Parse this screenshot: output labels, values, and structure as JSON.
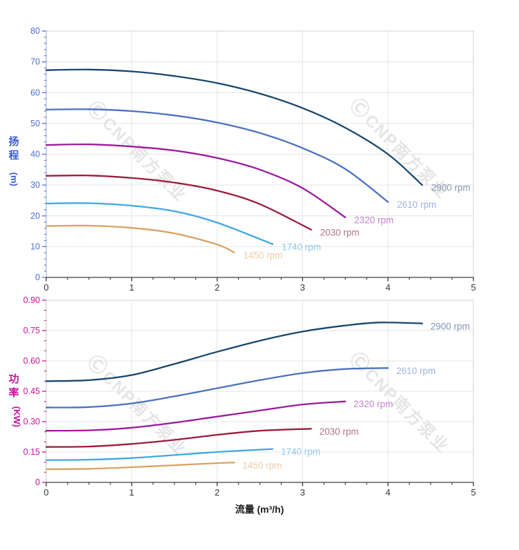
{
  "page": {
    "background": "#ffffff"
  },
  "watermark": {
    "symbol": "Ⓒ",
    "text": "CNP南方泵业"
  },
  "chart_data": [
    {
      "type": "line",
      "title": "",
      "role": "pump-head-curve",
      "ylabel": "扬程 (m)",
      "ylabel_cn": "扬程",
      "ylabel_unit": "(m)",
      "xlabel": "流量 (m³/h)",
      "xlim": [
        0,
        5
      ],
      "ylim": [
        0,
        80
      ],
      "x_major": 1,
      "x_minor": 0.25,
      "y_major": 10,
      "y_minor": 2,
      "x_tick_labels": [
        "0",
        "1",
        "2",
        "3",
        "4",
        "5"
      ],
      "y_tick_labels": [
        "0",
        "10",
        "20",
        "30",
        "40",
        "50",
        "60",
        "70",
        "80"
      ],
      "grid": true,
      "legend_position": "curve-ends",
      "colors": {
        "y_axis_line": "#8fa2dd",
        "y_tick": "#5d7ad9",
        "y_text": "#4a6fd8",
        "x_axis": "#3f3f3f",
        "x_text": "#333333",
        "grid": "#e4e4e4",
        "border": "#d2d2d2"
      },
      "series": [
        {
          "name": "2900 rpm",
          "rpm": 2900,
          "color": "#16466e",
          "label_color": "#7e95b5",
          "points": [
            [
              0,
              67.3
            ],
            [
              0.5,
              67.5
            ],
            [
              1,
              66.9
            ],
            [
              1.5,
              65.4
            ],
            [
              2,
              63.1
            ],
            [
              2.5,
              59.7
            ],
            [
              3,
              55
            ],
            [
              3.5,
              48.6
            ],
            [
              4,
              40
            ],
            [
              4.4,
              30
            ]
          ]
        },
        {
          "name": "2610 rpm",
          "rpm": 2610,
          "color": "#4a70c0",
          "label_color": "#9fb2de",
          "points": [
            [
              0,
              54.5
            ],
            [
              0.5,
              54.6
            ],
            [
              1,
              54
            ],
            [
              1.5,
              52.6
            ],
            [
              2,
              50.3
            ],
            [
              2.5,
              46.9
            ],
            [
              3,
              42
            ],
            [
              3.5,
              35.2
            ],
            [
              4,
              24.5
            ]
          ]
        },
        {
          "name": "2320 rpm",
          "rpm": 2320,
          "color": "#9c189c",
          "label_color": "#c382ca",
          "points": [
            [
              0,
              43
            ],
            [
              0.5,
              43.2
            ],
            [
              1,
              42.5
            ],
            [
              1.5,
              41.2
            ],
            [
              2,
              38.8
            ],
            [
              2.5,
              35
            ],
            [
              3,
              29
            ],
            [
              3.5,
              19.5
            ]
          ]
        },
        {
          "name": "2030 rpm",
          "rpm": 2030,
          "color": "#9b1b3c",
          "label_color": "#b5708a",
          "points": [
            [
              0,
              33
            ],
            [
              0.5,
              33.1
            ],
            [
              1,
              32.3
            ],
            [
              1.5,
              30.8
            ],
            [
              2,
              28.2
            ],
            [
              2.5,
              23.8
            ],
            [
              3.1,
              15.5
            ]
          ]
        },
        {
          "name": "1740 rpm",
          "rpm": 1740,
          "color": "#3fa8e0",
          "label_color": "#8ec8ec",
          "points": [
            [
              0,
              24
            ],
            [
              0.5,
              24.1
            ],
            [
              1,
              23.3
            ],
            [
              1.5,
              21.5
            ],
            [
              2,
              17.8
            ],
            [
              2.65,
              10.8
            ]
          ]
        },
        {
          "name": "1450 rpm",
          "rpm": 1450,
          "color": "#d8a263",
          "label_color": "#eccda6",
          "points": [
            [
              0,
              16.7
            ],
            [
              0.5,
              16.8
            ],
            [
              1,
              16.1
            ],
            [
              1.5,
              14.3
            ],
            [
              2,
              10.7
            ],
            [
              2.2,
              8.1
            ]
          ]
        }
      ]
    },
    {
      "type": "line",
      "title": "",
      "role": "pump-power-curve",
      "ylabel": "功率 (KW)",
      "ylabel_cn": "功率",
      "ylabel_unit": "(KW)",
      "xlabel": "流量 (m³/h)",
      "xlim": [
        0,
        5
      ],
      "ylim": [
        0,
        0.9
      ],
      "x_major": 1,
      "x_minor": 0.25,
      "y_major": 0.15,
      "y_minor": 0.05,
      "x_tick_labels": [
        "0",
        "1",
        "2",
        "3",
        "4",
        "5"
      ],
      "y_tick_labels": [
        "0",
        "0.15",
        "0.30",
        "0.45",
        "0.60",
        "0.75",
        "0.90"
      ],
      "grid": true,
      "legend_position": "curve-ends",
      "colors": {
        "y_axis_line": "#c6c6c6",
        "y_tick": "#d02a9c",
        "y_text": "#cc1199",
        "x_axis": "#3f3f3f",
        "x_text": "#333333",
        "grid": "#e4e4e4",
        "border": "#d2d2d2"
      },
      "series": [
        {
          "name": "2900 rpm",
          "rpm": 2900,
          "color": "#16466e",
          "label_color": "#7e95b5",
          "points": [
            [
              0,
              0.5
            ],
            [
              0.5,
              0.505
            ],
            [
              1,
              0.53
            ],
            [
              1.5,
              0.585
            ],
            [
              2,
              0.645
            ],
            [
              2.5,
              0.7
            ],
            [
              3,
              0.745
            ],
            [
              3.5,
              0.775
            ],
            [
              3.9,
              0.79
            ],
            [
              4.4,
              0.785
            ]
          ]
        },
        {
          "name": "2610 rpm",
          "rpm": 2610,
          "color": "#4a70c0",
          "label_color": "#9fb2de",
          "points": [
            [
              0,
              0.37
            ],
            [
              0.5,
              0.372
            ],
            [
              1,
              0.39
            ],
            [
              1.5,
              0.425
            ],
            [
              2,
              0.465
            ],
            [
              2.5,
              0.505
            ],
            [
              3,
              0.54
            ],
            [
              3.5,
              0.56
            ],
            [
              4,
              0.565
            ]
          ]
        },
        {
          "name": "2320 rpm",
          "rpm": 2320,
          "color": "#9c189c",
          "label_color": "#c382ca",
          "points": [
            [
              0,
              0.255
            ],
            [
              0.5,
              0.257
            ],
            [
              1,
              0.27
            ],
            [
              1.5,
              0.295
            ],
            [
              2,
              0.325
            ],
            [
              2.5,
              0.355
            ],
            [
              3,
              0.385
            ],
            [
              3.5,
              0.4
            ]
          ]
        },
        {
          "name": "2030 rpm",
          "rpm": 2030,
          "color": "#9b1b3c",
          "label_color": "#b5708a",
          "points": [
            [
              0,
              0.175
            ],
            [
              0.5,
              0.177
            ],
            [
              1,
              0.19
            ],
            [
              1.5,
              0.21
            ],
            [
              2,
              0.235
            ],
            [
              2.5,
              0.255
            ],
            [
              3.1,
              0.265
            ]
          ]
        },
        {
          "name": "1740 rpm",
          "rpm": 1740,
          "color": "#3fa8e0",
          "label_color": "#8ec8ec",
          "points": [
            [
              0,
              0.11
            ],
            [
              0.5,
              0.112
            ],
            [
              1,
              0.12
            ],
            [
              1.5,
              0.135
            ],
            [
              2,
              0.15
            ],
            [
              2.65,
              0.165
            ]
          ]
        },
        {
          "name": "1450 rpm",
          "rpm": 1450,
          "color": "#d8a263",
          "label_color": "#eccda6",
          "points": [
            [
              0,
              0.065
            ],
            [
              0.5,
              0.067
            ],
            [
              1,
              0.075
            ],
            [
              1.5,
              0.085
            ],
            [
              2,
              0.095
            ],
            [
              2.2,
              0.098
            ]
          ]
        }
      ]
    }
  ]
}
